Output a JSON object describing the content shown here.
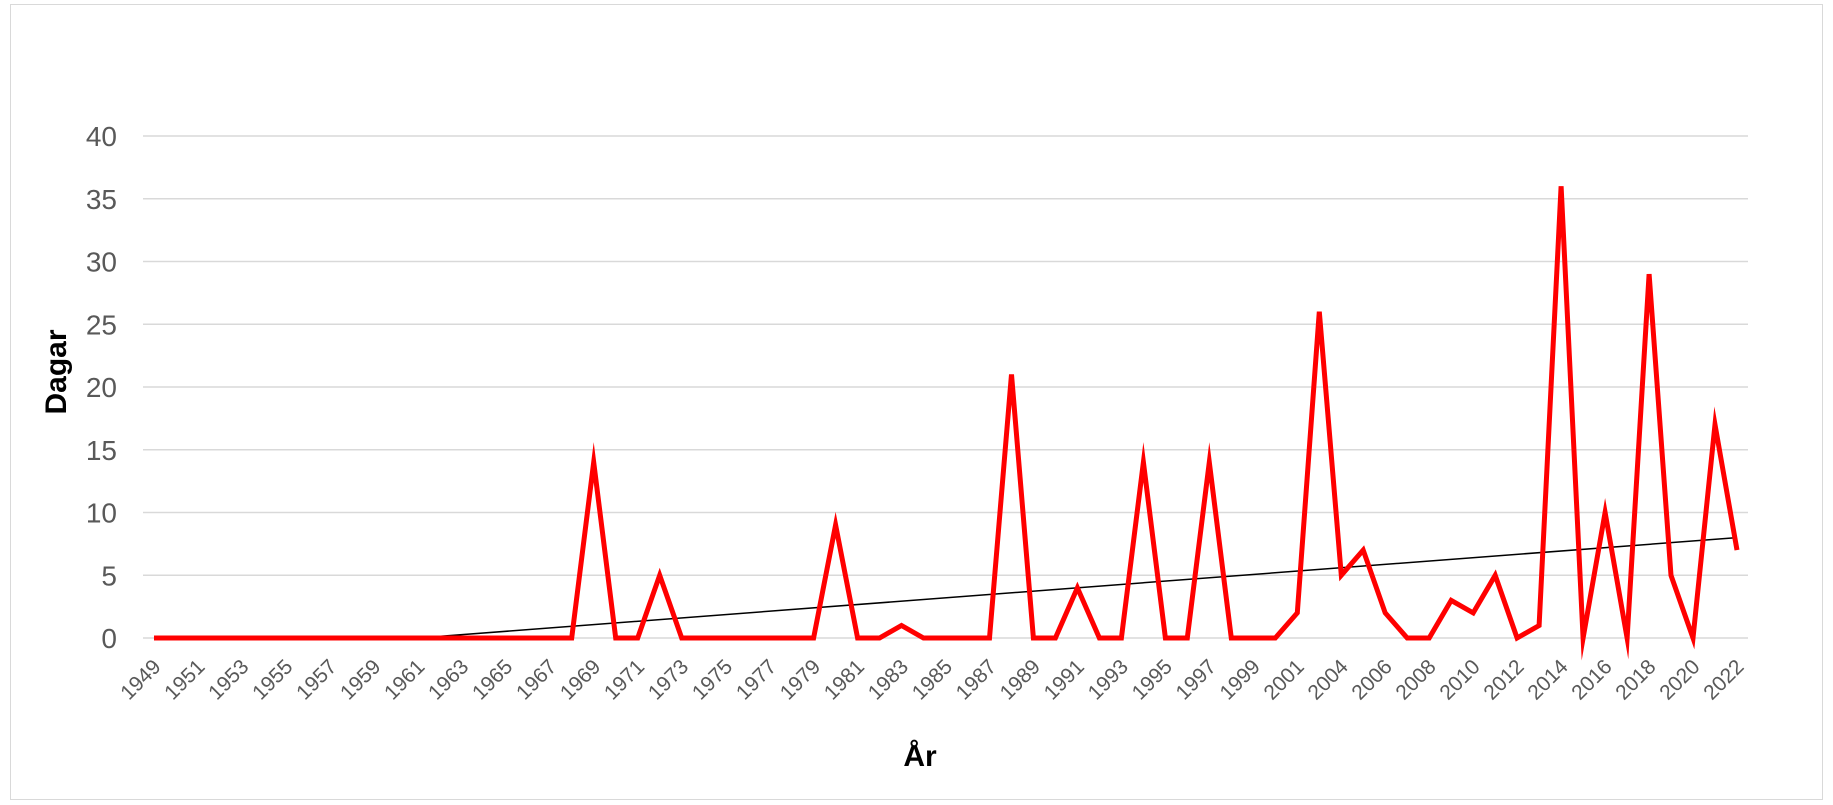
{
  "chart_data": {
    "type": "line",
    "title": "",
    "xlabel": "År",
    "ylabel": "Dagar",
    "ylim": [
      0,
      40
    ],
    "yticks": [
      0,
      5,
      10,
      15,
      20,
      25,
      30,
      35,
      40
    ],
    "grid": true,
    "legend": "none",
    "x": [
      "1949",
      "1950",
      "1951",
      "1952",
      "1953",
      "1954",
      "1955",
      "1956",
      "1957",
      "1958",
      "1959",
      "1960",
      "1961",
      "1962",
      "1963",
      "1964",
      "1965",
      "1966",
      "1967",
      "1968",
      "1969",
      "1970",
      "1971",
      "1972",
      "1973",
      "1974",
      "1975",
      "1976",
      "1977",
      "1978",
      "1979",
      "1980",
      "1981",
      "1982",
      "1983",
      "1984",
      "1985",
      "1986",
      "1987",
      "1988",
      "1989",
      "1990",
      "1991",
      "1992",
      "1993",
      "1994",
      "1995",
      "1996",
      "1997",
      "1998",
      "1999",
      "2000",
      "2001",
      "2002",
      "2004",
      "2005",
      "2006",
      "2007",
      "2008",
      "2009",
      "2010",
      "2011",
      "2012",
      "2013",
      "2014",
      "2015",
      "2016",
      "2017",
      "2018",
      "2019",
      "2020",
      "2021",
      "2022"
    ],
    "x_tick_labels": [
      "1949",
      "1951",
      "1953",
      "1955",
      "1957",
      "1959",
      "1961",
      "1963",
      "1965",
      "1967",
      "1969",
      "1971",
      "1973",
      "1975",
      "1977",
      "1979",
      "1981",
      "1983",
      "1985",
      "1987",
      "1989",
      "1991",
      "1993",
      "1995",
      "1997",
      "1999",
      "2001",
      "2004",
      "2006",
      "2008",
      "2010",
      "2012",
      "2014",
      "2016",
      "2018",
      "2020",
      "2022"
    ],
    "series": [
      {
        "color": "#ff0000",
        "values": [
          0,
          0,
          0,
          0,
          0,
          0,
          0,
          0,
          0,
          0,
          0,
          0,
          0,
          0,
          0,
          0,
          0,
          0,
          0,
          0,
          14,
          0,
          0,
          5,
          0,
          0,
          0,
          0,
          0,
          0,
          0,
          9,
          0,
          0,
          1,
          0,
          0,
          0,
          0,
          21,
          0,
          0,
          4,
          0,
          0,
          14,
          0,
          0,
          14,
          0,
          0,
          0,
          2,
          26,
          5,
          7,
          2,
          0,
          0,
          3,
          2,
          5,
          0,
          1,
          36,
          0,
          10,
          0,
          29,
          5,
          0,
          17,
          7
        ]
      }
    ],
    "trendline": {
      "type": "linear",
      "color": "#000000",
      "start_value": 0,
      "end_value": 8
    }
  }
}
